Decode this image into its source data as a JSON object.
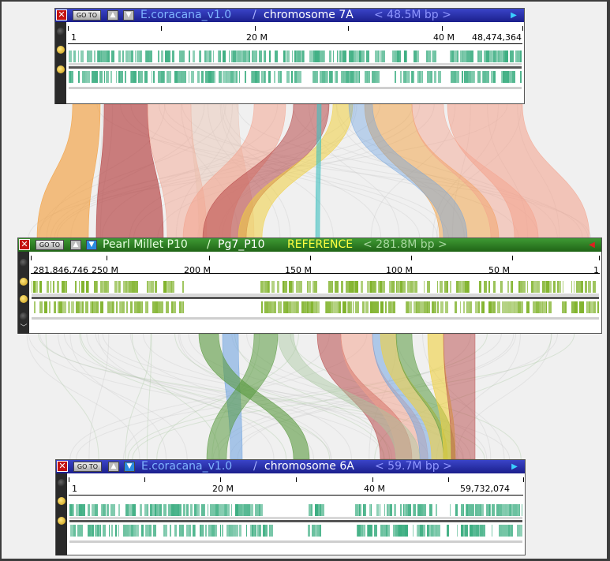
{
  "colors": {
    "titlebar_blue": "#2a2fb0",
    "titlebar_green": "#2d7d22",
    "track_teal": "#3dae82",
    "track_green": "#7fb22a",
    "ribbon_palette": [
      "#f2a040",
      "#b84a4a",
      "#f4a08a",
      "#e8c0b0",
      "#c8c8c8",
      "#f0d040",
      "#6aa0e0",
      "#5a9a40",
      "#40c0c0",
      "#a8c8a0"
    ]
  },
  "buttons": {
    "close_label": "✕",
    "goto_label": "GO TO",
    "up_arrow": "▲",
    "down_arrow": "▼"
  },
  "panels": {
    "top": {
      "genome": "E.coracana_v1.0",
      "separator": "/",
      "chromosome": "chromosome 7A",
      "size": "<  48.5M bp  >",
      "nav_icon": "right-triangle",
      "ruler_labels": [
        "1",
        "20 M",
        "40 M",
        "48,474,364"
      ]
    },
    "middle": {
      "genome": "Pearl Millet P10",
      "separator": "/",
      "chromosome": "Pg7_P10",
      "reference": "REFERENCE",
      "size": "<  281.8M bp  >",
      "nav_icon": "left-triangle",
      "ruler_labels": [
        "281,846,746",
        "250 M",
        "200 M",
        "150 M",
        "100 M",
        "50 M",
        "1"
      ]
    },
    "bottom": {
      "genome": "E.coracana_v1.0",
      "separator": "/",
      "chromosome": "chromosome 6A",
      "size": "<  59.7M bp  >",
      "nav_icon": "right-triangle",
      "ruler_labels": [
        "1",
        "20 M",
        "40 M",
        "59,732,074"
      ]
    }
  }
}
